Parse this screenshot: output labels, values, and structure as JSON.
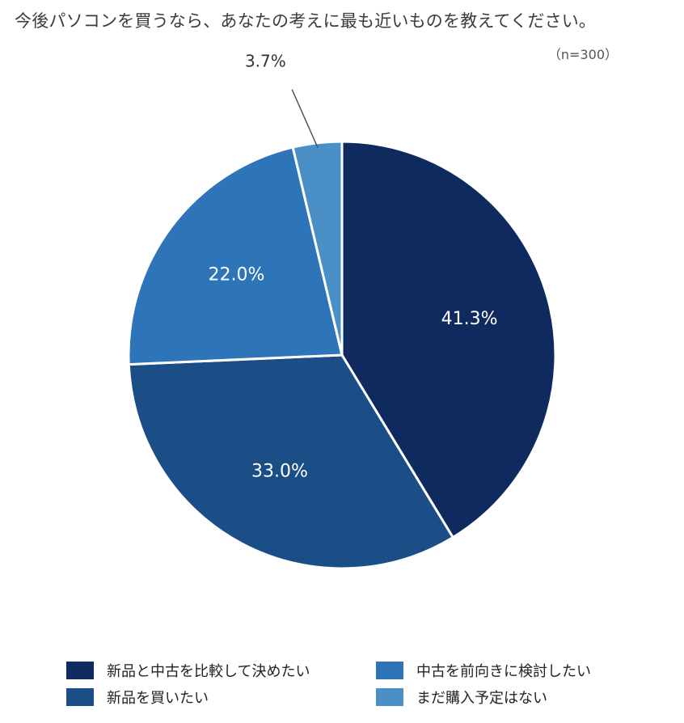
{
  "title": "今後パソコンを買うなら、あなたの考えに最も近いものを教えてください。",
  "sample_size": "（n=300）",
  "chart_data": {
    "type": "pie",
    "title": "今後パソコンを買うなら、あなたの考えに最も近いものを教えてください。",
    "categories": [
      "新品と中古を比較して決めたい",
      "新品を買いたい",
      "中古を前向きに検討したい",
      "まだ購入予定はない"
    ],
    "values": [
      41.3,
      33.0,
      22.0,
      3.7
    ],
    "labels": [
      "41.3%",
      "33.0%",
      "22.0%",
      "3.7%"
    ],
    "colors": [
      "#0f2a5e",
      "#1b4d86",
      "#2e74b8",
      "#4a90c6"
    ],
    "start_angle": "12 o'clock",
    "direction": "clockwise",
    "legend_position": "bottom"
  }
}
